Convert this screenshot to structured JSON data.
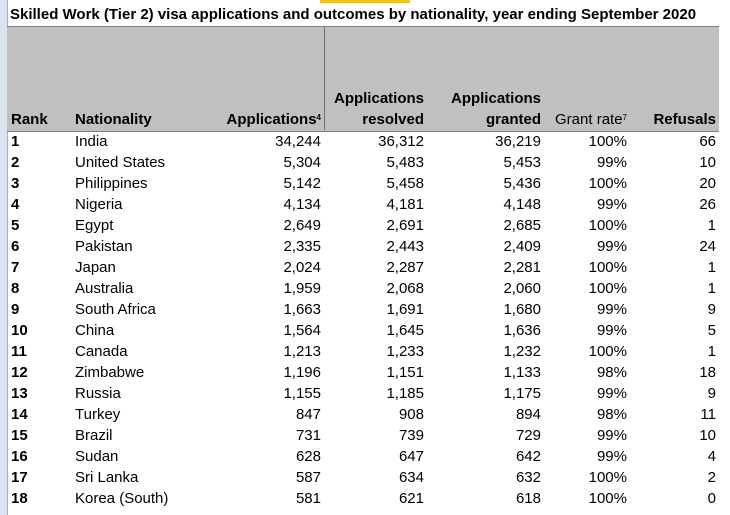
{
  "title": "Skilled Work (Tier 2) visa applications and outcomes by nationality, year ending September 2020",
  "columns": {
    "rank": "Rank",
    "nationality": "Nationality",
    "applications": "Applications",
    "applications_sup": "4",
    "resolved_line1": "Applications",
    "resolved_line2": "resolved",
    "granted_line1": "Applications",
    "granted_line2": "granted",
    "grant_rate": "Grant rate",
    "grant_rate_sup": "7",
    "refusals": "Refusals"
  },
  "rows": [
    {
      "rank": "1",
      "nationality": "India",
      "applications": "34,244",
      "resolved": "36,312",
      "granted": "36,219",
      "grant_rate": "100%",
      "refusals": "66"
    },
    {
      "rank": "2",
      "nationality": "United States",
      "applications": "5,304",
      "resolved": "5,483",
      "granted": "5,453",
      "grant_rate": "99%",
      "refusals": "10"
    },
    {
      "rank": "3",
      "nationality": "Philippines",
      "applications": "5,142",
      "resolved": "5,458",
      "granted": "5,436",
      "grant_rate": "100%",
      "refusals": "20"
    },
    {
      "rank": "4",
      "nationality": "Nigeria",
      "applications": "4,134",
      "resolved": "4,181",
      "granted": "4,148",
      "grant_rate": "99%",
      "refusals": "26"
    },
    {
      "rank": "5",
      "nationality": "Egypt",
      "applications": "2,649",
      "resolved": "2,691",
      "granted": "2,685",
      "grant_rate": "100%",
      "refusals": "1"
    },
    {
      "rank": "6",
      "nationality": "Pakistan",
      "applications": "2,335",
      "resolved": "2,443",
      "granted": "2,409",
      "grant_rate": "99%",
      "refusals": "24"
    },
    {
      "rank": "7",
      "nationality": "Japan",
      "applications": "2,024",
      "resolved": "2,287",
      "granted": "2,281",
      "grant_rate": "100%",
      "refusals": "1"
    },
    {
      "rank": "8",
      "nationality": "Australia",
      "applications": "1,959",
      "resolved": "2,068",
      "granted": "2,060",
      "grant_rate": "100%",
      "refusals": "1"
    },
    {
      "rank": "9",
      "nationality": "South Africa",
      "applications": "1,663",
      "resolved": "1,691",
      "granted": "1,680",
      "grant_rate": "99%",
      "refusals": "9"
    },
    {
      "rank": "10",
      "nationality": "China",
      "applications": "1,564",
      "resolved": "1,645",
      "granted": "1,636",
      "grant_rate": "99%",
      "refusals": "5"
    },
    {
      "rank": "11",
      "nationality": "Canada",
      "applications": "1,213",
      "resolved": "1,233",
      "granted": "1,232",
      "grant_rate": "100%",
      "refusals": "1"
    },
    {
      "rank": "12",
      "nationality": "Zimbabwe",
      "applications": "1,196",
      "resolved": "1,151",
      "granted": "1,133",
      "grant_rate": "98%",
      "refusals": "18"
    },
    {
      "rank": "13",
      "nationality": "Russia",
      "applications": "1,155",
      "resolved": "1,185",
      "granted": "1,175",
      "grant_rate": "99%",
      "refusals": "9"
    },
    {
      "rank": "14",
      "nationality": "Turkey",
      "applications": "847",
      "resolved": "908",
      "granted": "894",
      "grant_rate": "98%",
      "refusals": "11"
    },
    {
      "rank": "15",
      "nationality": "Brazil",
      "applications": "731",
      "resolved": "739",
      "granted": "729",
      "grant_rate": "99%",
      "refusals": "10"
    },
    {
      "rank": "16",
      "nationality": "Sudan",
      "applications": "628",
      "resolved": "647",
      "granted": "642",
      "grant_rate": "99%",
      "refusals": "4"
    },
    {
      "rank": "17",
      "nationality": "Sri Lanka",
      "applications": "587",
      "resolved": "634",
      "granted": "632",
      "grant_rate": "100%",
      "refusals": "2"
    },
    {
      "rank": "18",
      "nationality": "Korea (South)",
      "applications": "581",
      "resolved": "621",
      "granted": "618",
      "grant_rate": "100%",
      "refusals": "0"
    }
  ]
}
